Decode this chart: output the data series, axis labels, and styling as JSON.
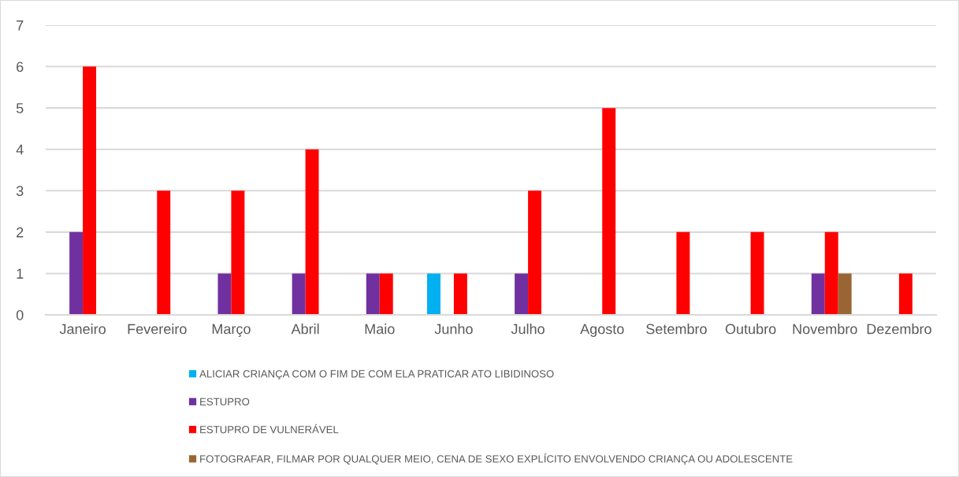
{
  "chart_data": {
    "type": "bar",
    "categories": [
      "Janeiro",
      "Fevereiro",
      "Março",
      "Abril",
      "Maio",
      "Junho",
      "Julho",
      "Agosto",
      "Setembro",
      "Outubro",
      "Novembro",
      "Dezembro"
    ],
    "series": [
      {
        "name": "ALICIAR CRIANÇA COM O FIM DE COM ELA PRATICAR ATO LIBIDINOSO",
        "color": "#00b0f0",
        "values": [
          null,
          null,
          null,
          null,
          null,
          1,
          null,
          null,
          null,
          null,
          null,
          null
        ]
      },
      {
        "name": "ESTUPRO",
        "color": "#7030a0",
        "values": [
          2,
          null,
          1,
          1,
          1,
          null,
          1,
          null,
          null,
          null,
          1,
          null
        ]
      },
      {
        "name": "ESTUPRO DE VULNERÁVEL",
        "color": "#ff0000",
        "values": [
          6,
          3,
          3,
          4,
          1,
          1,
          3,
          5,
          2,
          2,
          2,
          1
        ]
      },
      {
        "name": "FOTOGRAFAR, FILMAR POR QUALQUER MEIO, CENA DE SEXO EXPLÍCITO ENVOLVENDO CRIANÇA OU ADOLESCENTE",
        "color": "#996633",
        "values": [
          null,
          null,
          null,
          null,
          null,
          null,
          null,
          null,
          null,
          null,
          1,
          null
        ]
      }
    ],
    "ylim": [
      0,
      7
    ],
    "yticks": [
      0,
      1,
      2,
      3,
      4,
      5,
      6,
      7
    ],
    "grid": "y",
    "legend": "bottom"
  }
}
